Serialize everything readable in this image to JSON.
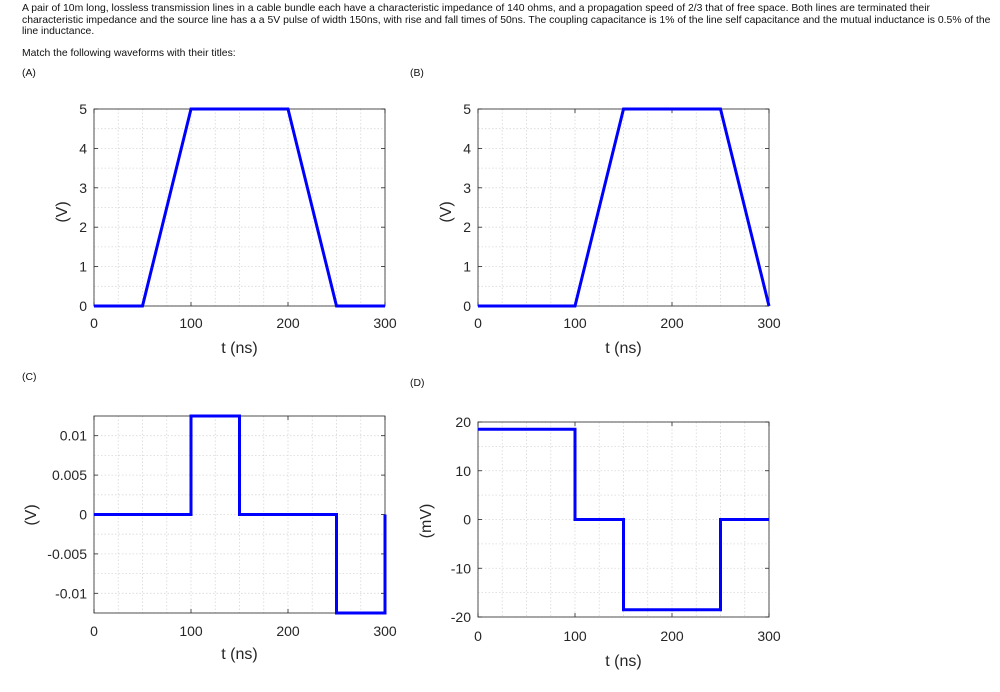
{
  "question": {
    "text": "A pair of 10m long, lossless transmission lines in a cable bundle each have a characteristic impedance of 140 ohms, and a propagation speed of 2/3 that of free space. Both lines are terminated their characteristic impedance and the source line has a a 5V pulse of width 150ns, with rise and fall times of 50ns. The coupling capacitance is 1% of the line self capacitance and the mutual inductance is 0.5% of the line inductance.",
    "instruction": "Match the following waveforms with their titles:"
  },
  "colors": {
    "trace": "#0000ff",
    "background": "#ffffff"
  },
  "chart_data": [
    {
      "panel": "(A)",
      "type": "line",
      "xlabel": "t (ns)",
      "ylabel": "(V)",
      "xlim": [
        0,
        300
      ],
      "ylim": [
        0,
        5
      ],
      "xticks": [
        0,
        100,
        200,
        300
      ],
      "xtick_labels": [
        "0",
        "100",
        "200",
        "300"
      ],
      "yticks": [
        0,
        1,
        2,
        3,
        4,
        5
      ],
      "ytick_labels": [
        "0",
        "1",
        "2",
        "3",
        "4",
        "5"
      ],
      "grid": true,
      "series": [
        {
          "x": [
            0,
            50,
            100,
            200,
            250,
            300
          ],
          "y": [
            0,
            0,
            5,
            5,
            0,
            0
          ]
        }
      ]
    },
    {
      "panel": "(B)",
      "type": "line",
      "xlabel": "t (ns)",
      "ylabel": "(V)",
      "xlim": [
        0,
        300
      ],
      "ylim": [
        0,
        5
      ],
      "xticks": [
        0,
        100,
        200,
        300
      ],
      "xtick_labels": [
        "0",
        "100",
        "200",
        "300"
      ],
      "yticks": [
        0,
        1,
        2,
        3,
        4,
        5
      ],
      "ytick_labels": [
        "0",
        "1",
        "2",
        "3",
        "4",
        "5"
      ],
      "grid": true,
      "series": [
        {
          "x": [
            0,
            100,
            150,
            250,
            300
          ],
          "y": [
            0,
            0,
            5,
            5,
            0
          ]
        }
      ]
    },
    {
      "panel": "(C)",
      "type": "line",
      "xlabel": "t (ns)",
      "ylabel": "(V)",
      "xlim": [
        0,
        300
      ],
      "ylim": [
        -0.0125,
        0.0125
      ],
      "xticks": [
        0,
        100,
        200,
        300
      ],
      "xtick_labels": [
        "0",
        "100",
        "200",
        "300"
      ],
      "yticks": [
        0.01,
        0.005,
        0,
        -0.005,
        -0.01
      ],
      "ytick_labels": [
        "0.01",
        "0.005",
        "0",
        "-0.005",
        "-0.01"
      ],
      "grid": true,
      "series": [
        {
          "x": [
            0,
            100,
            100,
            150,
            150,
            250,
            250,
            300,
            300
          ],
          "y": [
            0,
            0,
            0.0125,
            0.0125,
            0,
            0,
            -0.0125,
            -0.0125,
            0
          ]
        }
      ]
    },
    {
      "panel": "(D)",
      "type": "line",
      "xlabel": "t (ns)",
      "ylabel": "(mV)",
      "xlim": [
        0,
        300
      ],
      "ylim": [
        -20,
        20
      ],
      "xticks": [
        0,
        100,
        200,
        300
      ],
      "xtick_labels": [
        "0",
        "100",
        "200",
        "300"
      ],
      "yticks": [
        20,
        10,
        0,
        -10,
        -20
      ],
      "ytick_labels": [
        "20",
        "10",
        "0",
        "-10",
        "-20"
      ],
      "grid": true,
      "series": [
        {
          "x": [
            0,
            100,
            100,
            150,
            150,
            250,
            250,
            300
          ],
          "y": [
            18.5,
            18.5,
            0,
            0,
            -18.5,
            -18.5,
            0,
            0
          ]
        }
      ]
    }
  ]
}
